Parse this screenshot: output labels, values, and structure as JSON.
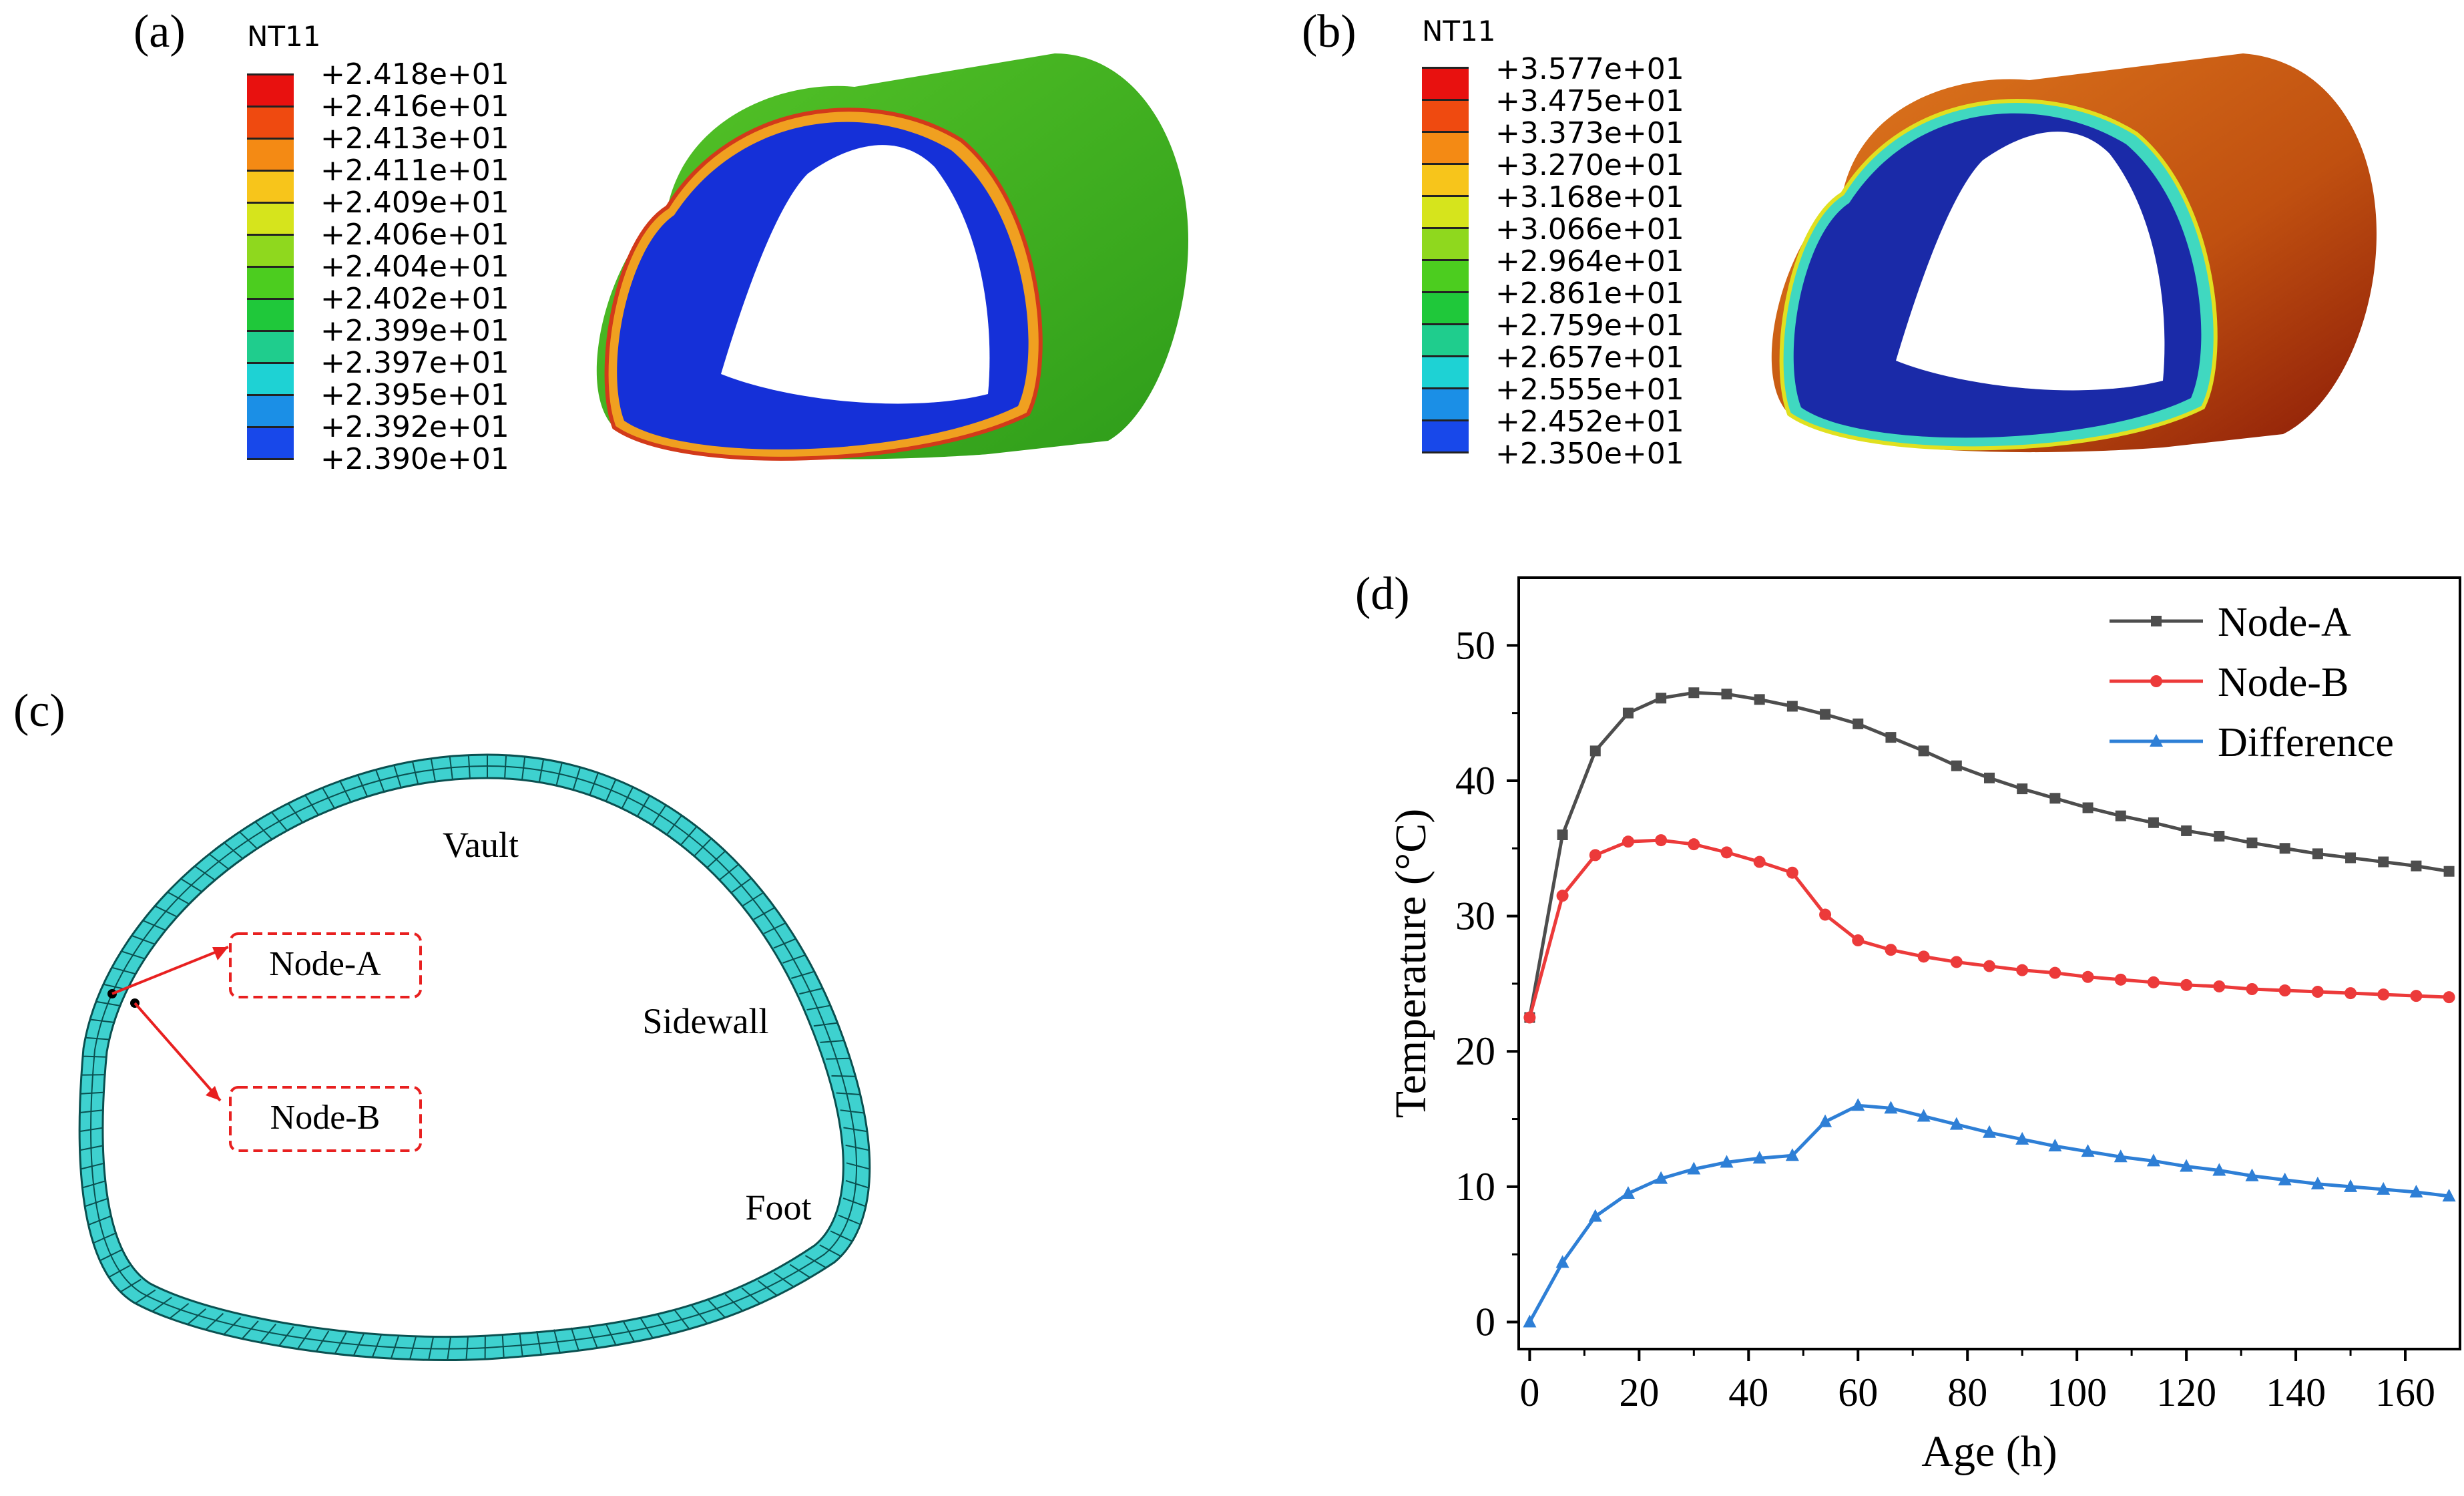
{
  "panel_a": {
    "label": "(a)",
    "variable": "NT11",
    "legend_values": [
      "+2.418e+01",
      "+2.416e+01",
      "+2.413e+01",
      "+2.411e+01",
      "+2.409e+01",
      "+2.406e+01",
      "+2.404e+01",
      "+2.402e+01",
      "+2.399e+01",
      "+2.397e+01",
      "+2.395e+01",
      "+2.392e+01",
      "+2.390e+01"
    ],
    "colors": [
      "#e8110f",
      "#ef4a10",
      "#f48a14",
      "#f7c51b",
      "#d6e41c",
      "#8fd81e",
      "#4ccd1f",
      "#1fc83a",
      "#1fcd8d",
      "#1ed2d4",
      "#1b8fe6",
      "#1848ea",
      "#1410e8"
    ]
  },
  "panel_b": {
    "label": "(b)",
    "variable": "NT11",
    "legend_values": [
      "+3.577e+01",
      "+3.475e+01",
      "+3.373e+01",
      "+3.270e+01",
      "+3.168e+01",
      "+3.066e+01",
      "+2.964e+01",
      "+2.861e+01",
      "+2.759e+01",
      "+2.657e+01",
      "+2.555e+01",
      "+2.452e+01",
      "+2.350e+01"
    ],
    "colors": [
      "#e8110f",
      "#ef4a10",
      "#f48a14",
      "#f7c51b",
      "#d6e41c",
      "#8fd81e",
      "#4ccd1f",
      "#1fc83a",
      "#1fcd8d",
      "#1ed2d4",
      "#1b8fe6",
      "#1848ea",
      "#1410e8"
    ]
  },
  "panel_c": {
    "label": "(c)",
    "region_labels": {
      "vault": "Vault",
      "sidewall": "Sidewall",
      "foot": "Foot"
    },
    "node_a": "Node-A",
    "node_b": "Node-B",
    "lining_color": "#3ed1cf"
  },
  "panel_d": {
    "label": "(d)"
  },
  "chart_data": {
    "type": "line",
    "xlabel": "Age (h)",
    "ylabel": "Temperature (°C)",
    "xlim": [
      -2,
      170
    ],
    "ylim": [
      -2,
      55
    ],
    "xticks": [
      0,
      20,
      40,
      60,
      80,
      100,
      120,
      140,
      160
    ],
    "yticks": [
      0,
      10,
      20,
      30,
      40,
      50
    ],
    "legend_position": "top-right",
    "x": [
      0,
      6,
      12,
      18,
      24,
      30,
      36,
      42,
      48,
      54,
      60,
      66,
      72,
      78,
      84,
      90,
      96,
      102,
      108,
      114,
      120,
      126,
      132,
      138,
      144,
      150,
      156,
      162,
      168
    ],
    "series": [
      {
        "name": "Node-A",
        "color": "#4d4d4d",
        "marker": "square",
        "values": [
          22.5,
          36.0,
          42.2,
          45.0,
          46.1,
          46.5,
          46.4,
          46.0,
          45.5,
          44.9,
          44.2,
          43.2,
          42.2,
          41.1,
          40.2,
          39.4,
          38.7,
          38.0,
          37.4,
          36.9,
          36.3,
          35.9,
          35.4,
          35.0,
          34.6,
          34.3,
          34.0,
          33.7,
          33.3
        ]
      },
      {
        "name": "Node-B",
        "color": "#ec3a3a",
        "marker": "circle",
        "values": [
          22.5,
          31.5,
          34.5,
          35.5,
          35.6,
          35.3,
          34.7,
          34.0,
          33.2,
          30.1,
          28.2,
          27.5,
          27.0,
          26.6,
          26.3,
          26.0,
          25.8,
          25.5,
          25.3,
          25.1,
          24.9,
          24.8,
          24.6,
          24.5,
          24.4,
          24.3,
          24.2,
          24.1,
          24.0
        ]
      },
      {
        "name": "Difference",
        "color": "#2e7fd6",
        "marker": "triangle",
        "values": [
          0,
          4.4,
          7.8,
          9.5,
          10.6,
          11.3,
          11.8,
          12.1,
          12.3,
          14.8,
          16.0,
          15.8,
          15.2,
          14.6,
          14.0,
          13.5,
          13.0,
          12.6,
          12.2,
          11.9,
          11.5,
          11.2,
          10.8,
          10.5,
          10.2,
          10.0,
          9.8,
          9.6,
          9.3
        ]
      }
    ]
  }
}
